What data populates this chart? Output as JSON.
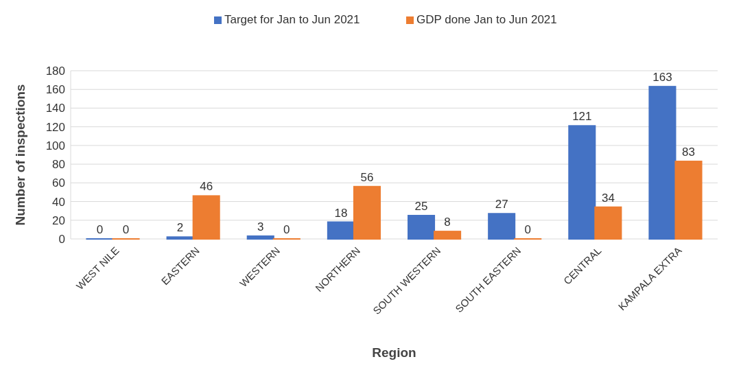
{
  "chart_data": {
    "type": "bar",
    "xlabel": "Region",
    "ylabel": "Number of inspections",
    "categories": [
      "WEST NILE",
      "EASTERN",
      "WESTERN",
      "NORTHERN",
      "SOUTH WESTERN",
      "SOUTH EASTERN",
      "CENTRAL",
      "KAMPALA EXTRA"
    ],
    "series": [
      {
        "name": "Target for Jan to Jun 2021",
        "color": "#4472c4",
        "values": [
          0,
          2,
          3,
          18,
          25,
          27,
          121,
          163
        ]
      },
      {
        "name": "GDP done Jan to Jun 2021",
        "color": "#ed7d31",
        "values": [
          0,
          46,
          0,
          56,
          8,
          0,
          34,
          83
        ]
      }
    ],
    "ylim": [
      0,
      180
    ],
    "yticks": [
      0,
      20,
      40,
      60,
      80,
      100,
      120,
      140,
      160,
      180
    ],
    "grid": "y",
    "legend": "top",
    "data_labels": true
  }
}
